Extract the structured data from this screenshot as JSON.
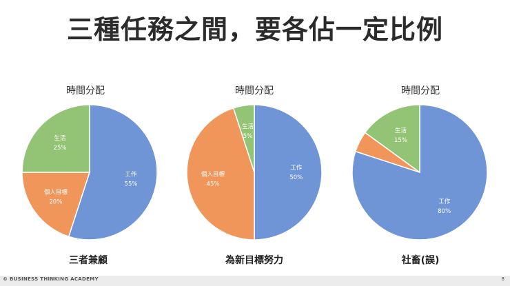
{
  "title": "三種任務之間，要各佔一定比例",
  "footer": {
    "left": "© BUSINESS THINKING ACADEMY",
    "page": "8"
  },
  "colors": {
    "work": "#6f95d6",
    "personal": "#f0965a",
    "life": "#93c374"
  },
  "chart_data": [
    {
      "type": "pie",
      "title": "時間分配",
      "caption": "三者兼顧",
      "categories": [
        "工作",
        "個人目標",
        "生活"
      ],
      "values": [
        55,
        20,
        25
      ],
      "labels": [
        "55%",
        "20%",
        "25%"
      ]
    },
    {
      "type": "pie",
      "title": "時間分配",
      "caption": "為新目標努力",
      "categories": [
        "工作",
        "個人目標",
        "生活"
      ],
      "values": [
        50,
        45,
        5
      ],
      "labels": [
        "50%",
        "45%",
        "5%"
      ]
    },
    {
      "type": "pie",
      "title": "時間分配",
      "caption": "社畜(誤)",
      "categories": [
        "工作",
        "個人目標",
        "生活"
      ],
      "values": [
        80,
        5,
        15
      ],
      "labels": [
        "80%",
        "",
        "15%"
      ]
    }
  ]
}
